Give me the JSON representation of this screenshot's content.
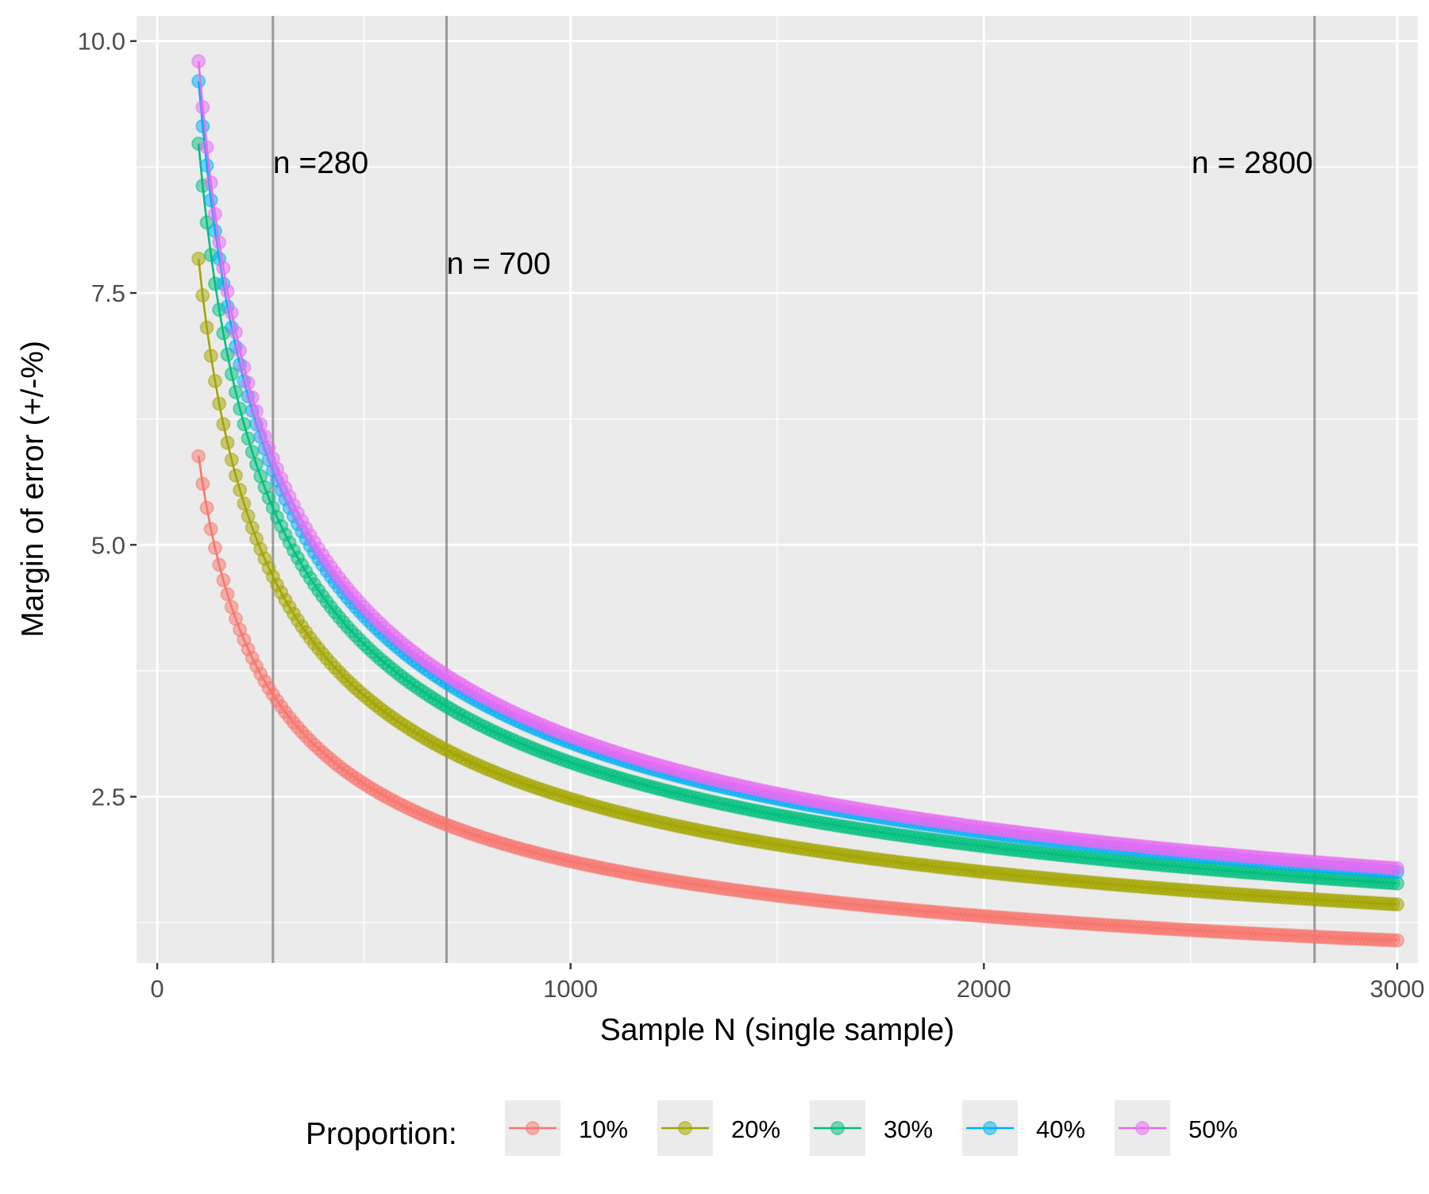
{
  "chart_data": {
    "type": "line",
    "title": "",
    "xlabel": "Sample N (single sample)",
    "ylabel": "Margin of error (+/-%)",
    "xlim": [
      -50,
      3050
    ],
    "ylim": [
      0.85,
      10.25
    ],
    "x_ticks": [
      0,
      1000,
      2000,
      3000
    ],
    "x_tick_labels": [
      "0",
      "1000",
      "2000",
      "3000"
    ],
    "y_ticks": [
      2.5,
      5.0,
      7.5,
      10.0
    ],
    "y_tick_labels": [
      "2.5",
      "5.0",
      "7.5",
      "10.0"
    ],
    "grid": true,
    "legend_title": "Proportion:",
    "legend_position": "bottom",
    "x_range": {
      "start": 100,
      "end": 3000,
      "step": 10
    },
    "formula": "margin = 1.96 * sqrt(p * (1 - p) / n) * 100",
    "series": [
      {
        "name": "10%",
        "p": 0.1,
        "color": "#F8766D"
      },
      {
        "name": "20%",
        "p": 0.2,
        "color": "#A3A500"
      },
      {
        "name": "30%",
        "p": 0.3,
        "color": "#00BF7D"
      },
      {
        "name": "40%",
        "p": 0.4,
        "color": "#00B0F6"
      },
      {
        "name": "50%",
        "p": 0.5,
        "color": "#E76BF3"
      }
    ],
    "reference_lines": [
      {
        "x": 280,
        "label": "n =280",
        "label_y": 8.8
      },
      {
        "x": 700,
        "label": "n = 700",
        "label_y": 7.8
      },
      {
        "x": 2800,
        "label": "n = 2800",
        "label_y": 8.8
      }
    ]
  }
}
